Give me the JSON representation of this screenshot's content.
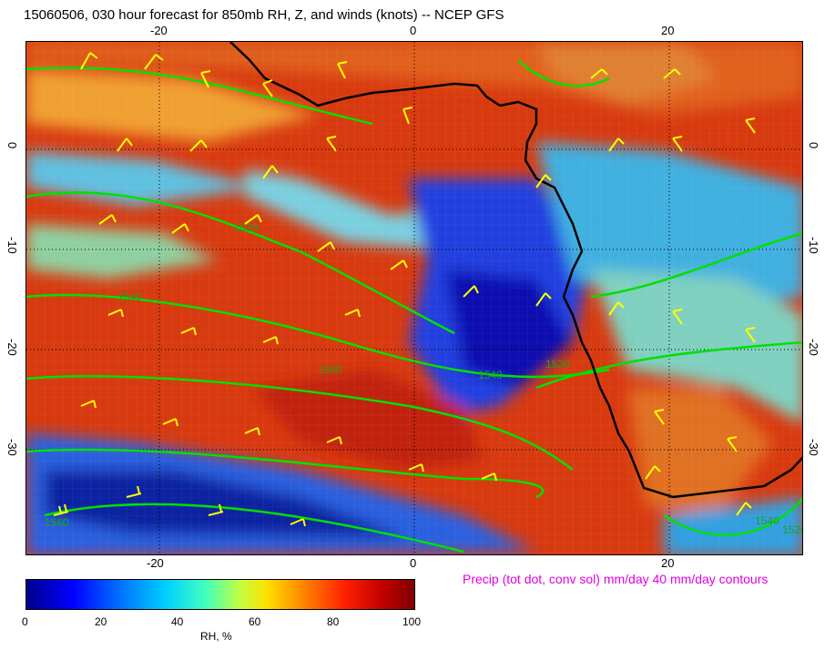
{
  "title": "15060506, 030 hour forecast for 850mb RH, Z, and winds (knots)  -- NCEP GFS",
  "precip_note": "Precip (tot dot, conv sol) mm/day 40 mm/day contours",
  "axes": {
    "top_ticks": [
      "-20",
      "0",
      "20"
    ],
    "bottom_ticks": [
      "-20",
      "0",
      "20"
    ],
    "left_ticks": [
      "0",
      "-10",
      "-20",
      "-30"
    ],
    "right_ticks": [
      "0",
      "-10",
      "-20",
      "-30"
    ]
  },
  "contour_labels": [
    "1520",
    "1540",
    "1560",
    "1520",
    "1560",
    "1540",
    "1540",
    "1520"
  ],
  "colorbar": {
    "labels": [
      "0",
      "20",
      "40",
      "60",
      "80",
      "100"
    ],
    "unit": "RH, %"
  },
  "colors": {
    "contour": "#00e000",
    "barb": "#ffff00",
    "coast": "#000000",
    "precip_text": "#e000e0"
  }
}
